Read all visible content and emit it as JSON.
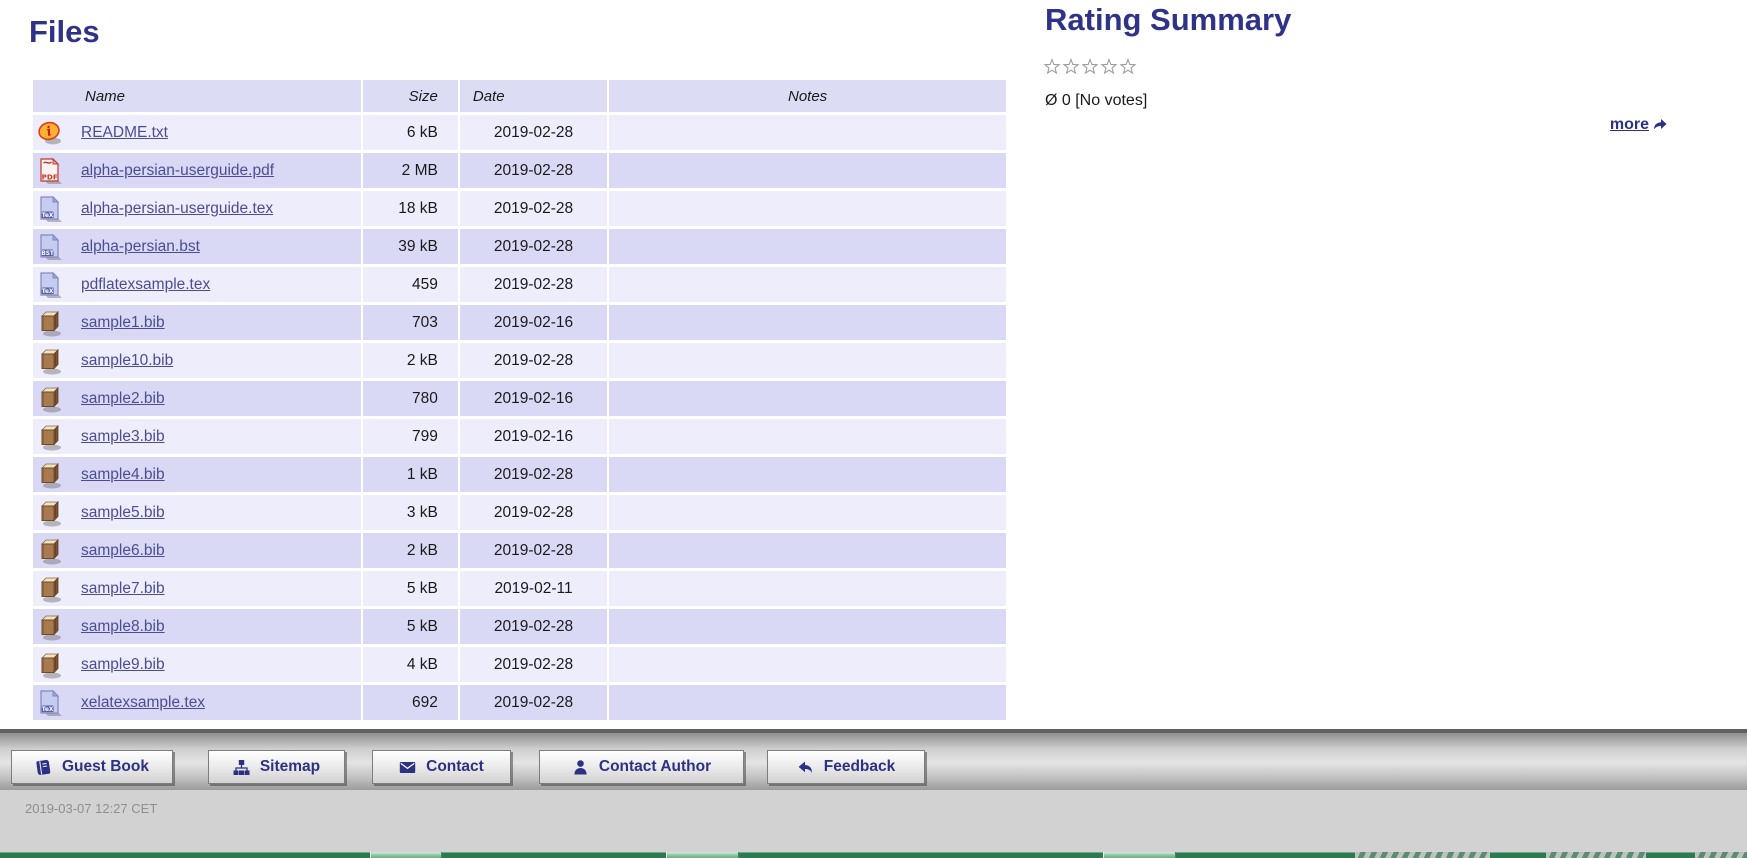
{
  "colors": {
    "heading": "#2e3387",
    "link": "#4c4c94",
    "table_header_bg": "#dcdcf5",
    "row_light": "#ededfb",
    "row_dark": "#d9d9f6",
    "footer_text": "#2d3184",
    "green_bar": "#2c7a50",
    "timestamp_text": "#8f8f8f"
  },
  "files_section": {
    "title": "Files",
    "table": {
      "headers": [
        "Name",
        "Size",
        "Date",
        "Notes"
      ],
      "rows": [
        {
          "icon": "readme-icon",
          "name": "README.txt",
          "size": "6 kB",
          "date": "2019-02-28",
          "notes": ""
        },
        {
          "icon": "pdf-icon",
          "name": "alpha-persian-userguide.pdf",
          "size": "2 MB",
          "date": "2019-02-28",
          "notes": ""
        },
        {
          "icon": "tex-icon",
          "name": "alpha-persian-userguide.tex",
          "size": "18 kB",
          "date": "2019-02-28",
          "notes": ""
        },
        {
          "icon": "bst-icon",
          "name": "alpha-persian.bst",
          "size": "39 kB",
          "date": "2019-02-28",
          "notes": ""
        },
        {
          "icon": "tex-icon",
          "name": "pdflatexsample.tex",
          "size": "459",
          "date": "2019-02-28",
          "notes": ""
        },
        {
          "icon": "bib-icon",
          "name": "sample1.bib",
          "size": "703",
          "date": "2019-02-16",
          "notes": ""
        },
        {
          "icon": "bib-icon",
          "name": "sample10.bib",
          "size": "2 kB",
          "date": "2019-02-28",
          "notes": ""
        },
        {
          "icon": "bib-icon",
          "name": "sample2.bib",
          "size": "780",
          "date": "2019-02-16",
          "notes": ""
        },
        {
          "icon": "bib-icon",
          "name": "sample3.bib",
          "size": "799",
          "date": "2019-02-16",
          "notes": ""
        },
        {
          "icon": "bib-icon",
          "name": "sample4.bib",
          "size": "1 kB",
          "date": "2019-02-28",
          "notes": ""
        },
        {
          "icon": "bib-icon",
          "name": "sample5.bib",
          "size": "3 kB",
          "date": "2019-02-28",
          "notes": ""
        },
        {
          "icon": "bib-icon",
          "name": "sample6.bib",
          "size": "2 kB",
          "date": "2019-02-28",
          "notes": ""
        },
        {
          "icon": "bib-icon",
          "name": "sample7.bib",
          "size": "5 kB",
          "date": "2019-02-11",
          "notes": ""
        },
        {
          "icon": "bib-icon",
          "name": "sample8.bib",
          "size": "5 kB",
          "date": "2019-02-28",
          "notes": ""
        },
        {
          "icon": "bib-icon",
          "name": "sample9.bib",
          "size": "4 kB",
          "date": "2019-02-28",
          "notes": ""
        },
        {
          "icon": "tex-icon",
          "name": "xelatexsample.tex",
          "size": "692",
          "date": "2019-02-28",
          "notes": ""
        }
      ]
    }
  },
  "rating_section": {
    "title": "Rating Summary",
    "stars_total": 5,
    "stars_filled": 0,
    "summary_text": "Ø 0 [No votes]",
    "more_label": "more"
  },
  "footer": {
    "buttons": [
      {
        "icon": "guestbook-icon",
        "label": "Guest Book"
      },
      {
        "icon": "sitemap-icon",
        "label": "Sitemap"
      },
      {
        "icon": "contact-icon",
        "label": "Contact"
      },
      {
        "icon": "author-icon",
        "label": "Contact Author"
      },
      {
        "icon": "feedback-icon",
        "label": "Feedback"
      }
    ],
    "timestamp": "2019-03-07 12:27 CET"
  }
}
